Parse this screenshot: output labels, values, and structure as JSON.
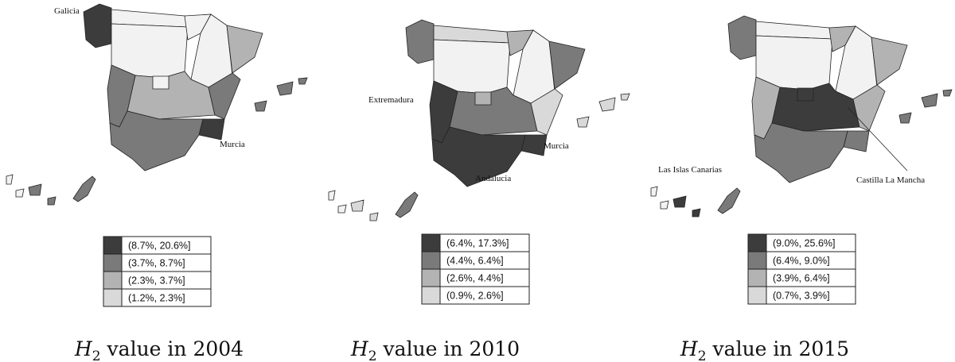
{
  "panels": [
    {
      "labels": [
        "Galicia",
        "Murcia"
      ],
      "legend": [
        {
          "label": "(8.7%, 20.6%]",
          "color": "#3c3c3c"
        },
        {
          "label": "(3.7%, 8.7%]",
          "color": "#7a7a7a"
        },
        {
          "label": "(2.3%, 3.7%]",
          "color": "#b3b3b3"
        },
        {
          "label": "(1.2%, 2.3%]",
          "color": "#d9d9d9"
        }
      ],
      "caption": {
        "symbol": "H",
        "subscript": "2",
        "text": "value in 2004"
      }
    },
    {
      "labels": [
        "Extremadura",
        "Murcia",
        "Andalucia"
      ],
      "legend": [
        {
          "label": "(6.4%, 17.3%]",
          "color": "#3c3c3c"
        },
        {
          "label": "(4.4%, 6.4%]",
          "color": "#7a7a7a"
        },
        {
          "label": "(2.6%, 4.4%]",
          "color": "#b3b3b3"
        },
        {
          "label": "(0.9%, 2.6%]",
          "color": "#d9d9d9"
        }
      ],
      "caption": {
        "symbol": "H",
        "subscript": "2",
        "text": "value in 2010"
      }
    },
    {
      "labels": [
        "Las Islas Canarias",
        "Castilla La Mancha"
      ],
      "legend": [
        {
          "label": "(9.0%, 25.6%]",
          "color": "#3c3c3c"
        },
        {
          "label": "(6.4%, 9.0%]",
          "color": "#7a7a7a"
        },
        {
          "label": "(3.9%, 6.4%]",
          "color": "#b3b3b3"
        },
        {
          "label": "(0.7%, 3.9%]",
          "color": "#d9d9d9"
        }
      ],
      "caption": {
        "symbol": "H",
        "subscript": "2",
        "text": "value in 2015"
      }
    }
  ]
}
